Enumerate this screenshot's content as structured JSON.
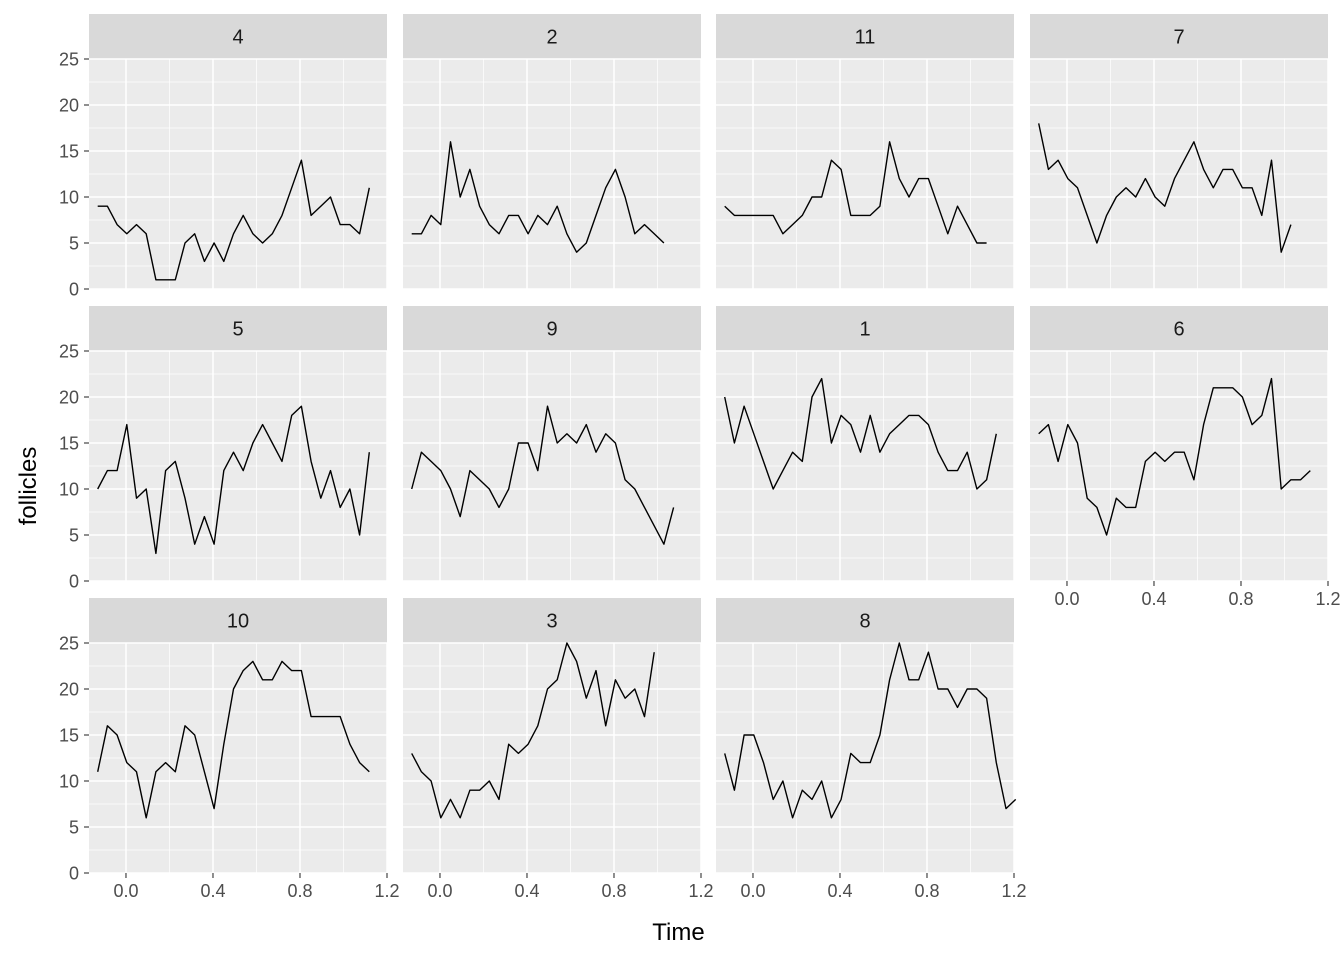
{
  "chart_data": {
    "type": "line",
    "xlabel": "Time",
    "ylabel": "follicles",
    "xlim": [
      -0.17,
      1.2
    ],
    "ylim": [
      0,
      25
    ],
    "x_ticks": [
      "0.0",
      "0.4",
      "0.8",
      "1.2"
    ],
    "x_tick_values": [
      0,
      0.4,
      0.8,
      1.2
    ],
    "y_ticks": [
      "0",
      "5",
      "10",
      "15",
      "20",
      "25"
    ],
    "y_tick_values": [
      0,
      5,
      10,
      15,
      20,
      25
    ],
    "grid": true,
    "background": "#EBEBEB",
    "strip_background": "#D9D9D9",
    "line_color": "#000000",
    "panels": [
      {
        "label": "4",
        "x0": -0.13,
        "dx": 0.0446,
        "values": [
          9,
          9,
          7,
          6,
          7,
          6,
          1,
          1,
          1,
          5,
          6,
          3,
          5,
          3,
          6,
          8,
          6,
          5,
          6,
          8,
          11,
          14,
          8,
          9,
          10,
          7,
          7,
          6,
          11
        ]
      },
      {
        "label": "2",
        "x0": -0.13,
        "dx": 0.0446,
        "values": [
          6,
          6,
          8,
          7,
          16,
          10,
          13,
          9,
          7,
          6,
          8,
          8,
          6,
          8,
          7,
          9,
          6,
          4,
          5,
          8,
          11,
          13,
          10,
          6,
          7,
          6,
          5
        ]
      },
      {
        "label": "11",
        "x0": -0.13,
        "dx": 0.0446,
        "values": [
          9,
          8,
          8,
          8,
          8,
          8,
          6,
          7,
          8,
          10,
          10,
          14,
          13,
          8,
          8,
          8,
          9,
          16,
          12,
          10,
          12,
          12,
          9,
          6,
          9,
          7,
          5,
          5
        ]
      },
      {
        "label": "7",
        "x0": -0.13,
        "dx": 0.0446,
        "values": [
          18,
          13,
          14,
          12,
          11,
          8,
          5,
          8,
          10,
          11,
          10,
          12,
          10,
          9,
          12,
          14,
          16,
          13,
          11,
          13,
          13,
          11,
          11,
          8,
          14,
          4,
          7
        ]
      },
      {
        "label": "5",
        "x0": -0.13,
        "dx": 0.0446,
        "values": [
          10,
          12,
          12,
          17,
          9,
          10,
          3,
          12,
          13,
          9,
          4,
          7,
          4,
          12,
          14,
          12,
          15,
          17,
          15,
          13,
          18,
          19,
          13,
          9,
          12,
          8,
          10,
          5,
          14
        ]
      },
      {
        "label": "9",
        "x0": -0.13,
        "dx": 0.0446,
        "values": [
          10,
          14,
          13,
          12,
          10,
          7,
          12,
          11,
          10,
          8,
          10,
          15,
          15,
          12,
          19,
          15,
          16,
          15,
          17,
          14,
          16,
          15,
          11,
          10,
          8,
          6,
          4,
          8
        ]
      },
      {
        "label": "1",
        "x0": -0.13,
        "dx": 0.0446,
        "values": [
          20,
          15,
          19,
          16,
          13,
          10,
          12,
          14,
          13,
          20,
          22,
          15,
          18,
          17,
          14,
          18,
          14,
          16,
          17,
          18,
          18,
          17,
          14,
          12,
          12,
          14,
          10,
          11,
          16
        ]
      },
      {
        "label": "6",
        "x0": -0.13,
        "dx": 0.0446,
        "values": [
          16,
          17,
          13,
          17,
          15,
          9,
          8,
          5,
          9,
          8,
          8,
          13,
          14,
          13,
          14,
          14,
          11,
          17,
          21,
          21,
          21,
          20,
          17,
          18,
          22,
          10,
          11,
          11,
          12
        ]
      },
      {
        "label": "10",
        "x0": -0.13,
        "dx": 0.0446,
        "values": [
          11,
          16,
          15,
          12,
          11,
          6,
          11,
          12,
          11,
          16,
          15,
          11,
          7,
          14,
          20,
          22,
          23,
          21,
          21,
          23,
          22,
          22,
          17,
          17,
          17,
          17,
          14,
          12,
          11
        ]
      },
      {
        "label": "3",
        "x0": -0.13,
        "dx": 0.0446,
        "values": [
          13,
          11,
          10,
          6,
          8,
          6,
          9,
          9,
          10,
          8,
          14,
          13,
          14,
          16,
          20,
          21,
          25,
          23,
          19,
          22,
          16,
          21,
          19,
          20,
          17,
          24
        ]
      },
      {
        "label": "8",
        "x0": -0.13,
        "dx": 0.0446,
        "values": [
          13,
          9,
          15,
          15,
          12,
          8,
          10,
          6,
          9,
          8,
          10,
          6,
          8,
          13,
          12,
          12,
          15,
          21,
          25,
          21,
          21,
          24,
          20,
          20,
          18,
          20,
          20,
          19,
          12,
          7,
          8
        ]
      }
    ]
  }
}
